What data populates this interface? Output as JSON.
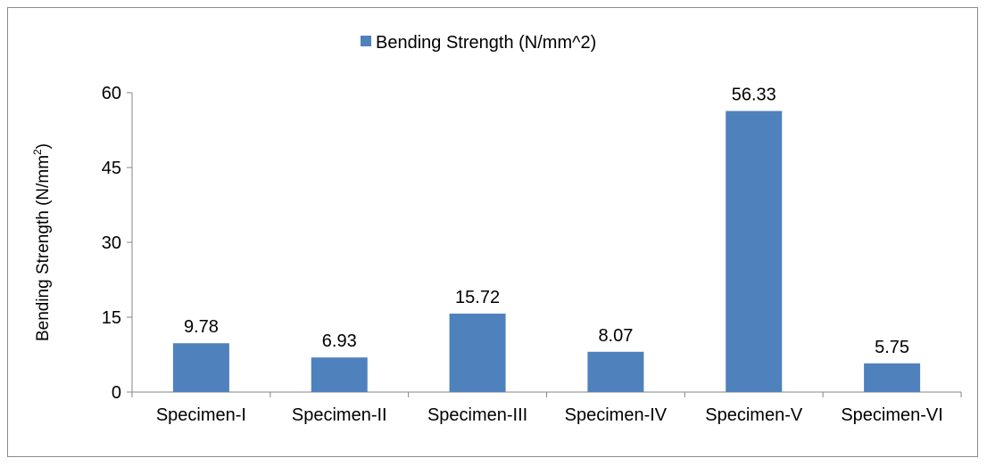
{
  "chart_data": {
    "type": "bar",
    "categories": [
      "Specimen-I",
      "Specimen-II",
      "Specimen-III",
      "Specimen-IV",
      "Specimen-V",
      "Specimen-VI"
    ],
    "series": [
      {
        "name": "Bending Strength (N/mm^2)",
        "values": [
          9.78,
          6.93,
          15.72,
          8.07,
          56.33,
          5.75
        ],
        "value_labels": [
          "9.78",
          "6.93",
          "15.72",
          "8.07",
          "56.33",
          "5.75"
        ],
        "color": "#4f81bd"
      }
    ],
    "ylabel": "Bending Strength (N/mm",
    "ylabel_superscript": "2",
    "ylabel_suffix": ")",
    "ylim": [
      0,
      60
    ],
    "yticks": [
      0,
      15,
      30,
      45,
      60
    ],
    "ytick_labels": [
      "0",
      "15",
      "30",
      "45",
      "60"
    ],
    "grid": false,
    "legend_position": "top-center"
  }
}
